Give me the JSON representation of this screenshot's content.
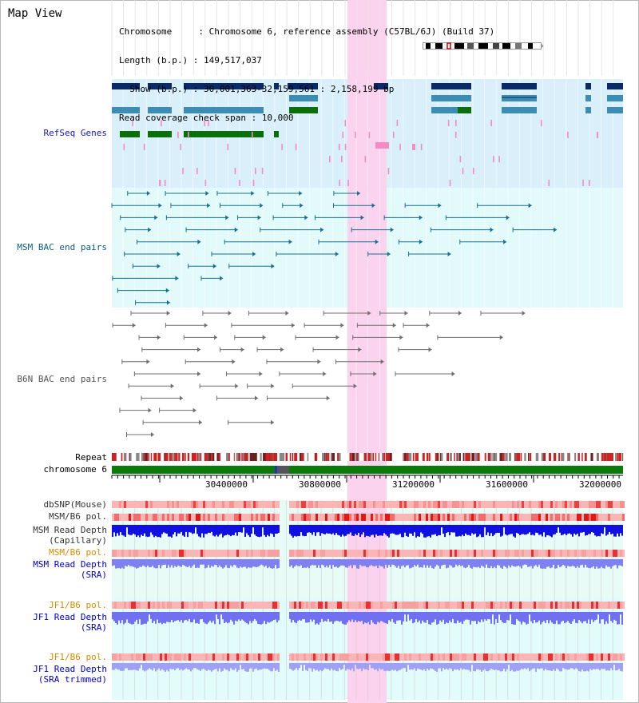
{
  "title": "Map View",
  "info": {
    "line1": "Chromosome     : Chromosome 6, reference assembly (C57BL/6J) (Build 37)",
    "line2": "Length (b.p.) : 149,517,037",
    "line3": "  Show (b.p.) : 30,001,363-32,159,561 : 2,158,199 bp",
    "line4": "Read coverage check span : 10,000"
  },
  "tracks": {
    "refseq": {
      "label": "RefSeq Genes",
      "color": "#1a1aa6"
    },
    "msm_bac": {
      "label": "MSM BAC end pairs",
      "color": "#0d5f7a"
    },
    "b6n_bac": {
      "label": "B6N BAC end pairs",
      "color": "#555555"
    },
    "repeat": {
      "label": "Repeat",
      "color": "#000000"
    },
    "chromosome": {
      "label": "chromosome 6",
      "color": "#000000"
    },
    "dbsnp": {
      "label": "dbSNP(Mouse)",
      "color": "#333333"
    },
    "msm_b6_pol_1": {
      "label": "MSM/B6 pol.",
      "color": "#333333"
    },
    "msm_read_depth_cap": {
      "label1": "MSM Read Depth",
      "label2": "(Capillary)",
      "color": "#333333"
    },
    "msm_b6_pol_2": {
      "label": "MSM/B6 pol.",
      "color": "#d98c00"
    },
    "msm_read_depth_sra": {
      "label1": "MSM Read Depth",
      "label2": "(SRA)",
      "color": "#0000cc"
    },
    "jf1_b6_pol_1": {
      "label": "JF1/B6 pol.",
      "color": "#d98c00"
    },
    "jf1_read_depth_sra": {
      "label1": "JF1 Read Depth",
      "label2": "(SRA)",
      "color": "#0000cc"
    },
    "jf1_b6_pol_2": {
      "label": "JF1/B6 pol.",
      "color": "#d98c00"
    },
    "jf1_read_depth_trim": {
      "label1": "JF1 Read Depth",
      "label2": "(SRA trimmed)",
      "color": "#0000cc"
    }
  },
  "ruler": {
    "ticks": [
      "30400000",
      "30800000",
      "31200000",
      "31600000",
      "32000000"
    ]
  },
  "colors": {
    "highlight": "#fcd3ef",
    "refseq_bg": "#d9f0fb",
    "bac_bg": "#e6fbfb",
    "gene_navy": "#0a2a66",
    "gene_teal": "#3c8cb4",
    "gene_green": "#0a6e0a"
  }
}
